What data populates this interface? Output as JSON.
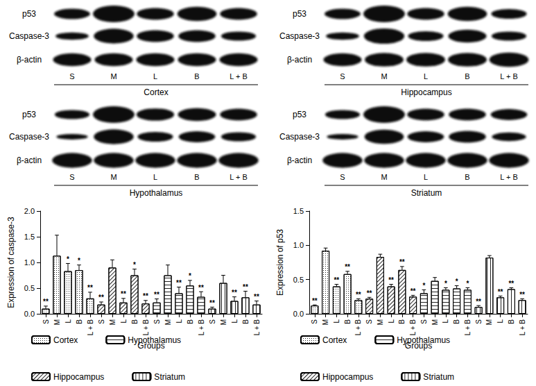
{
  "blots": [
    {
      "region": "Cortex",
      "lanes": [
        "S",
        "M",
        "L",
        "B",
        "L + B"
      ],
      "rows": [
        {
          "label": "p53",
          "intensity": [
            0.5,
            1.0,
            0.6,
            0.8,
            0.6
          ]
        },
        {
          "label": "Caspase-3",
          "intensity": [
            0.25,
            0.85,
            0.6,
            0.6,
            0.4
          ]
        },
        {
          "label": "β-actin",
          "intensity": [
            0.7,
            0.7,
            0.7,
            0.7,
            0.7
          ]
        }
      ]
    },
    {
      "region": "Hippocampus",
      "lanes": [
        "S",
        "M",
        "L",
        "B",
        "L + B"
      ],
      "rows": [
        {
          "label": "p53",
          "intensity": [
            0.5,
            1.0,
            0.6,
            0.8,
            0.45
          ]
        },
        {
          "label": "Caspase-3",
          "intensity": [
            0.25,
            0.9,
            0.45,
            0.7,
            0.4
          ]
        },
        {
          "label": "β-actin",
          "intensity": [
            0.7,
            0.75,
            0.75,
            0.75,
            0.8
          ]
        }
      ]
    },
    {
      "region": "Hypothalamus",
      "lanes": [
        "S",
        "M",
        "L",
        "B",
        "L + B"
      ],
      "rows": [
        {
          "label": "p53",
          "intensity": [
            0.4,
            1.0,
            0.65,
            0.7,
            0.6
          ]
        },
        {
          "label": "Caspase-3",
          "intensity": [
            0.1,
            0.85,
            0.45,
            0.55,
            0.4
          ]
        },
        {
          "label": "β-actin",
          "intensity": [
            0.85,
            0.85,
            0.85,
            0.85,
            0.85
          ]
        }
      ]
    },
    {
      "region": "Striatum",
      "lanes": [
        "S",
        "M",
        "L",
        "B",
        "L + B"
      ],
      "rows": [
        {
          "label": "p53",
          "intensity": [
            0.4,
            1.0,
            0.6,
            0.6,
            0.55
          ]
        },
        {
          "label": "Caspase-3",
          "intensity": [
            0.1,
            0.8,
            0.55,
            0.6,
            0.35
          ]
        },
        {
          "label": "β-actin",
          "intensity": [
            0.85,
            0.85,
            0.85,
            0.85,
            0.85
          ]
        }
      ]
    }
  ],
  "chart_data": [
    {
      "type": "bar",
      "y_label": "Expression of caspase-3",
      "x_label": "Groups",
      "categories": [
        "S",
        "M",
        "L",
        "B",
        "L + B",
        "S",
        "M",
        "L",
        "B",
        "L + B",
        "S",
        "M",
        "L",
        "B",
        "L + B",
        "S",
        "M",
        "L",
        "B",
        "L + B"
      ],
      "ylim": [
        0,
        2
      ],
      "yticks": [
        {
          "value": 0,
          "label": "0.0"
        },
        {
          "value": 0.5,
          "label": "0.5"
        },
        {
          "value": 1,
          "label": "1.0"
        },
        {
          "value": 1.5,
          "label": "1.5"
        },
        {
          "value": 2,
          "label": "2.0"
        }
      ],
      "grid": false,
      "legend": "bottom",
      "series": [
        {
          "name": "Cortex",
          "color": "#222222",
          "values": [
            0.1,
            1.13,
            0.83,
            0.85,
            0.3,
            null,
            null,
            null,
            null,
            null,
            null,
            null,
            null,
            null,
            null,
            null,
            null,
            null,
            null,
            null
          ],
          "errors": [
            0.05,
            0.4,
            0.15,
            0.1,
            0.12,
            null,
            null,
            null,
            null,
            null,
            null,
            null,
            null,
            null,
            null,
            null,
            null,
            null,
            null,
            null
          ],
          "significance": [
            "**",
            null,
            "*",
            "*",
            "**",
            null,
            null,
            null,
            null,
            null,
            null,
            null,
            null,
            null,
            null,
            null,
            null,
            null,
            null,
            null
          ]
        },
        {
          "name": "Hippocampus",
          "color": "#222222",
          "values": [
            null,
            null,
            null,
            null,
            null,
            0.18,
            0.9,
            0.22,
            0.75,
            0.2,
            null,
            null,
            null,
            null,
            null,
            null,
            null,
            null,
            null,
            null
          ],
          "errors": [
            null,
            null,
            null,
            null,
            null,
            0.05,
            0.15,
            0.08,
            0.12,
            0.06,
            null,
            null,
            null,
            null,
            null,
            null,
            null,
            null,
            null,
            null
          ],
          "significance": [
            null,
            null,
            null,
            null,
            null,
            "**",
            null,
            "**",
            "*",
            "**",
            null,
            null,
            null,
            null,
            null,
            null,
            null,
            null,
            null,
            null
          ]
        },
        {
          "name": "Hypothalamus",
          "color": "#222222",
          "values": [
            null,
            null,
            null,
            null,
            null,
            null,
            null,
            null,
            null,
            null,
            0.22,
            0.75,
            0.4,
            0.55,
            0.33,
            null,
            null,
            null,
            null,
            null
          ],
          "errors": [
            null,
            null,
            null,
            null,
            null,
            null,
            null,
            null,
            null,
            null,
            0.07,
            0.2,
            0.12,
            0.1,
            0.1,
            null,
            null,
            null,
            null,
            null
          ],
          "significance": [
            null,
            null,
            null,
            null,
            null,
            null,
            null,
            null,
            null,
            null,
            "**",
            null,
            "**",
            "*",
            "**",
            null,
            null,
            null,
            null,
            null
          ]
        },
        {
          "name": "Striatum",
          "color": "#222222",
          "values": [
            null,
            null,
            null,
            null,
            null,
            null,
            null,
            null,
            null,
            null,
            null,
            null,
            null,
            null,
            null,
            0.1,
            0.6,
            0.25,
            0.32,
            0.18
          ],
          "errors": [
            null,
            null,
            null,
            null,
            null,
            null,
            null,
            null,
            null,
            null,
            null,
            null,
            null,
            null,
            null,
            0.03,
            0.15,
            0.08,
            0.12,
            0.07
          ],
          "significance": [
            null,
            null,
            null,
            null,
            null,
            null,
            null,
            null,
            null,
            null,
            null,
            null,
            null,
            null,
            null,
            "**",
            null,
            "**",
            "**",
            "**"
          ]
        }
      ]
    },
    {
      "type": "bar",
      "y_label": "Expression of p53",
      "x_label": "Groups",
      "categories": [
        "S",
        "M",
        "L",
        "B",
        "L + B",
        "S",
        "M",
        "L",
        "B",
        "L + B",
        "S",
        "M",
        "L",
        "B",
        "L + B",
        "S",
        "M",
        "L",
        "B",
        "L + B"
      ],
      "ylim": [
        0,
        1.5
      ],
      "yticks": [
        {
          "value": 0,
          "label": "0.0"
        },
        {
          "value": 0.5,
          "label": "0.5"
        },
        {
          "value": 1,
          "label": "1.0"
        },
        {
          "value": 1.5,
          "label": "1.5"
        }
      ],
      "grid": false,
      "legend": "bottom",
      "series": [
        {
          "name": "Cortex",
          "color": "#222222",
          "values": [
            0.12,
            0.92,
            0.4,
            0.58,
            0.2,
            null,
            null,
            null,
            null,
            null,
            null,
            null,
            null,
            null,
            null,
            null,
            null,
            null,
            null,
            null
          ],
          "errors": [
            0.01,
            0.04,
            0.03,
            0.04,
            0.02,
            null,
            null,
            null,
            null,
            null,
            null,
            null,
            null,
            null,
            null,
            null,
            null,
            null,
            null,
            null
          ],
          "significance": [
            "**",
            null,
            "**",
            "**",
            "**",
            null,
            null,
            null,
            null,
            null,
            null,
            null,
            null,
            null,
            null,
            null,
            null,
            null,
            null,
            null
          ]
        },
        {
          "name": "Hippocampus",
          "color": "#222222",
          "values": [
            null,
            null,
            null,
            null,
            null,
            0.22,
            0.83,
            0.4,
            0.64,
            0.25,
            null,
            null,
            null,
            null,
            null,
            null,
            null,
            null,
            null,
            null
          ],
          "errors": [
            null,
            null,
            null,
            null,
            null,
            0.02,
            0.04,
            0.03,
            0.05,
            0.02,
            null,
            null,
            null,
            null,
            null,
            null,
            null,
            null,
            null,
            null
          ],
          "significance": [
            null,
            null,
            null,
            null,
            null,
            "**",
            null,
            "**",
            "**",
            "**",
            null,
            null,
            null,
            null,
            null,
            null,
            null,
            null,
            null,
            null
          ]
        },
        {
          "name": "Hypothalamus",
          "color": "#222222",
          "values": [
            null,
            null,
            null,
            null,
            null,
            null,
            null,
            null,
            null,
            null,
            0.3,
            0.48,
            0.35,
            0.37,
            0.35,
            null,
            null,
            null,
            null,
            null
          ],
          "errors": [
            null,
            null,
            null,
            null,
            null,
            null,
            null,
            null,
            null,
            null,
            0.05,
            0.05,
            0.03,
            0.04,
            0.03,
            null,
            null,
            null,
            null,
            null
          ],
          "significance": [
            null,
            null,
            null,
            null,
            null,
            null,
            null,
            null,
            null,
            null,
            "*",
            null,
            "*",
            "*",
            "*",
            null,
            null,
            null,
            null,
            null
          ]
        },
        {
          "name": "Striatum",
          "color": "#222222",
          "values": [
            null,
            null,
            null,
            null,
            null,
            null,
            null,
            null,
            null,
            null,
            null,
            null,
            null,
            null,
            null,
            0.1,
            0.82,
            0.24,
            0.36,
            0.2
          ],
          "errors": [
            null,
            null,
            null,
            null,
            null,
            null,
            null,
            null,
            null,
            null,
            null,
            null,
            null,
            null,
            null,
            0.02,
            0.03,
            0.02,
            0.02,
            0.02
          ],
          "significance": [
            null,
            null,
            null,
            null,
            null,
            null,
            null,
            null,
            null,
            null,
            null,
            null,
            null,
            null,
            null,
            "**",
            null,
            "**",
            "**",
            "**"
          ]
        }
      ]
    }
  ]
}
